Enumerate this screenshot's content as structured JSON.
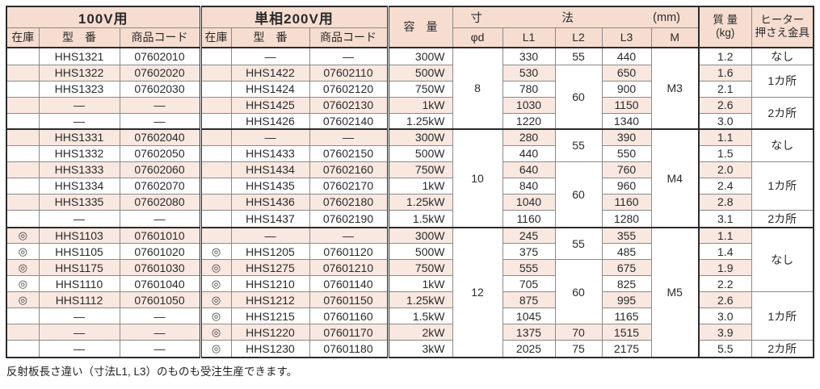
{
  "colors": {
    "header_pink": "#f6ddd0",
    "row_pink": "#f9e8e0",
    "border_dark": "#2b2b2b",
    "border_light": "#8a8a8a",
    "text": "#2a2a2a"
  },
  "header": {
    "v100_title": "100V用",
    "v200_title": "単相200V用",
    "stock": "在庫",
    "model": "型　番",
    "code": "商品コード",
    "capacity": "容　量",
    "dim_char1": "寸",
    "dim_char2": "法",
    "dim_unit": "(mm)",
    "phi_d": "φd",
    "l1": "L1",
    "l2": "L2",
    "l3": "L3",
    "m": "M",
    "mass_line1": "質 量",
    "mass_line2": "(kg)",
    "heater_line1": "ヒーター",
    "heater_line2": "押さえ金具"
  },
  "groups": [
    {
      "phi_d": "8",
      "m": "M3",
      "l2_spans": [
        {
          "value": "55",
          "span": 1
        },
        {
          "value": "60",
          "span": 4
        }
      ],
      "heater_spans": [
        {
          "value": "なし",
          "span": 1
        },
        {
          "value": "1カ所",
          "span": 2
        },
        {
          "value": "2カ所",
          "span": 2
        }
      ],
      "rows": [
        {
          "s1": "",
          "m1": "HHS1321",
          "c1": "07602010",
          "s2": "",
          "m2": "—",
          "c2": "—",
          "cap": "300W",
          "l1": "330",
          "l3": "440",
          "mass": "1.2"
        },
        {
          "s1": "",
          "m1": "HHS1322",
          "c1": "07602020",
          "s2": "",
          "m2": "HHS1422",
          "c2": "07602110",
          "cap": "500W",
          "l1": "530",
          "l3": "650",
          "mass": "1.6"
        },
        {
          "s1": "",
          "m1": "HHS1323",
          "c1": "07602030",
          "s2": "",
          "m2": "HHS1424",
          "c2": "07602120",
          "cap": "750W",
          "l1": "780",
          "l3": "900",
          "mass": "2.1"
        },
        {
          "s1": "",
          "m1": "—",
          "c1": "—",
          "s2": "",
          "m2": "HHS1425",
          "c2": "07602130",
          "cap": "1kW",
          "l1": "1030",
          "l3": "1150",
          "mass": "2.6"
        },
        {
          "s1": "",
          "m1": "—",
          "c1": "—",
          "s2": "",
          "m2": "HHS1426",
          "c2": "07602140",
          "cap": "1.25kW",
          "l1": "1220",
          "l3": "1340",
          "mass": "3.0"
        }
      ]
    },
    {
      "phi_d": "10",
      "m": "M4",
      "l2_spans": [
        {
          "value": "55",
          "span": 2
        },
        {
          "value": "60",
          "span": 4
        }
      ],
      "heater_spans": [
        {
          "value": "なし",
          "span": 2
        },
        {
          "value": "1カ所",
          "span": 3
        },
        {
          "value": "2カ所",
          "span": 1
        }
      ],
      "rows": [
        {
          "s1": "",
          "m1": "HHS1331",
          "c1": "07602040",
          "s2": "",
          "m2": "—",
          "c2": "—",
          "cap": "300W",
          "l1": "280",
          "l3": "390",
          "mass": "1.1"
        },
        {
          "s1": "",
          "m1": "HHS1332",
          "c1": "07602050",
          "s2": "",
          "m2": "HHS1433",
          "c2": "07602150",
          "cap": "500W",
          "l1": "440",
          "l3": "550",
          "mass": "1.5"
        },
        {
          "s1": "",
          "m1": "HHS1333",
          "c1": "07602060",
          "s2": "",
          "m2": "HHS1434",
          "c2": "07602160",
          "cap": "750W",
          "l1": "640",
          "l3": "760",
          "mass": "2.0"
        },
        {
          "s1": "",
          "m1": "HHS1334",
          "c1": "07602070",
          "s2": "",
          "m2": "HHS1435",
          "c2": "07602170",
          "cap": "1kW",
          "l1": "840",
          "l3": "960",
          "mass": "2.4"
        },
        {
          "s1": "",
          "m1": "HHS1335",
          "c1": "07602080",
          "s2": "",
          "m2": "HHS1436",
          "c2": "07602180",
          "cap": "1.25kW",
          "l1": "1040",
          "l3": "1160",
          "mass": "2.8"
        },
        {
          "s1": "",
          "m1": "—",
          "c1": "—",
          "s2": "",
          "m2": "HHS1437",
          "c2": "07602190",
          "cap": "1.5kW",
          "l1": "1160",
          "l3": "1280",
          "mass": "3.1"
        }
      ]
    },
    {
      "phi_d": "12",
      "m": "M5",
      "l2_spans": [
        {
          "value": "55",
          "span": 2
        },
        {
          "value": "60",
          "span": 4
        },
        {
          "value": "70",
          "span": 1
        },
        {
          "value": "75",
          "span": 1
        }
      ],
      "heater_spans": [
        {
          "value": "なし",
          "span": 4
        },
        {
          "value": "1カ所",
          "span": 3
        },
        {
          "value": "2カ所",
          "span": 1
        }
      ],
      "rows": [
        {
          "s1": "◎",
          "m1": "HHS1103",
          "c1": "07601010",
          "s2": "",
          "m2": "—",
          "c2": "—",
          "cap": "300W",
          "l1": "245",
          "l3": "355",
          "mass": "1.1"
        },
        {
          "s1": "◎",
          "m1": "HHS1105",
          "c1": "07601020",
          "s2": "◎",
          "m2": "HHS1205",
          "c2": "07601120",
          "cap": "500W",
          "l1": "375",
          "l3": "485",
          "mass": "1.4"
        },
        {
          "s1": "◎",
          "m1": "HHS1175",
          "c1": "07601030",
          "s2": "◎",
          "m2": "HHS1275",
          "c2": "07601210",
          "cap": "750W",
          "l1": "555",
          "l3": "675",
          "mass": "1.9"
        },
        {
          "s1": "◎",
          "m1": "HHS1110",
          "c1": "07601040",
          "s2": "◎",
          "m2": "HHS1210",
          "c2": "07601140",
          "cap": "1kW",
          "l1": "705",
          "l3": "825",
          "mass": "2.2"
        },
        {
          "s1": "◎",
          "m1": "HHS1112",
          "c1": "07601050",
          "s2": "◎",
          "m2": "HHS1212",
          "c2": "07601150",
          "cap": "1.25kW",
          "l1": "875",
          "l3": "995",
          "mass": "2.6"
        },
        {
          "s1": "",
          "m1": "—",
          "c1": "—",
          "s2": "◎",
          "m2": "HHS1215",
          "c2": "07601160",
          "cap": "1.5kW",
          "l1": "1045",
          "l3": "1165",
          "mass": "3.0"
        },
        {
          "s1": "",
          "m1": "—",
          "c1": "—",
          "s2": "◎",
          "m2": "HHS1220",
          "c2": "07601170",
          "cap": "2kW",
          "l1": "1375",
          "l3": "1515",
          "mass": "3.9"
        },
        {
          "s1": "",
          "m1": "—",
          "c1": "—",
          "s2": "◎",
          "m2": "HHS1230",
          "c2": "07601180",
          "cap": "3kW",
          "l1": "2025",
          "l3": "2175",
          "mass": "5.5"
        }
      ]
    }
  ],
  "footnote": "反射板長さ違い（寸法L1, L3）のものも受注生産できます。"
}
